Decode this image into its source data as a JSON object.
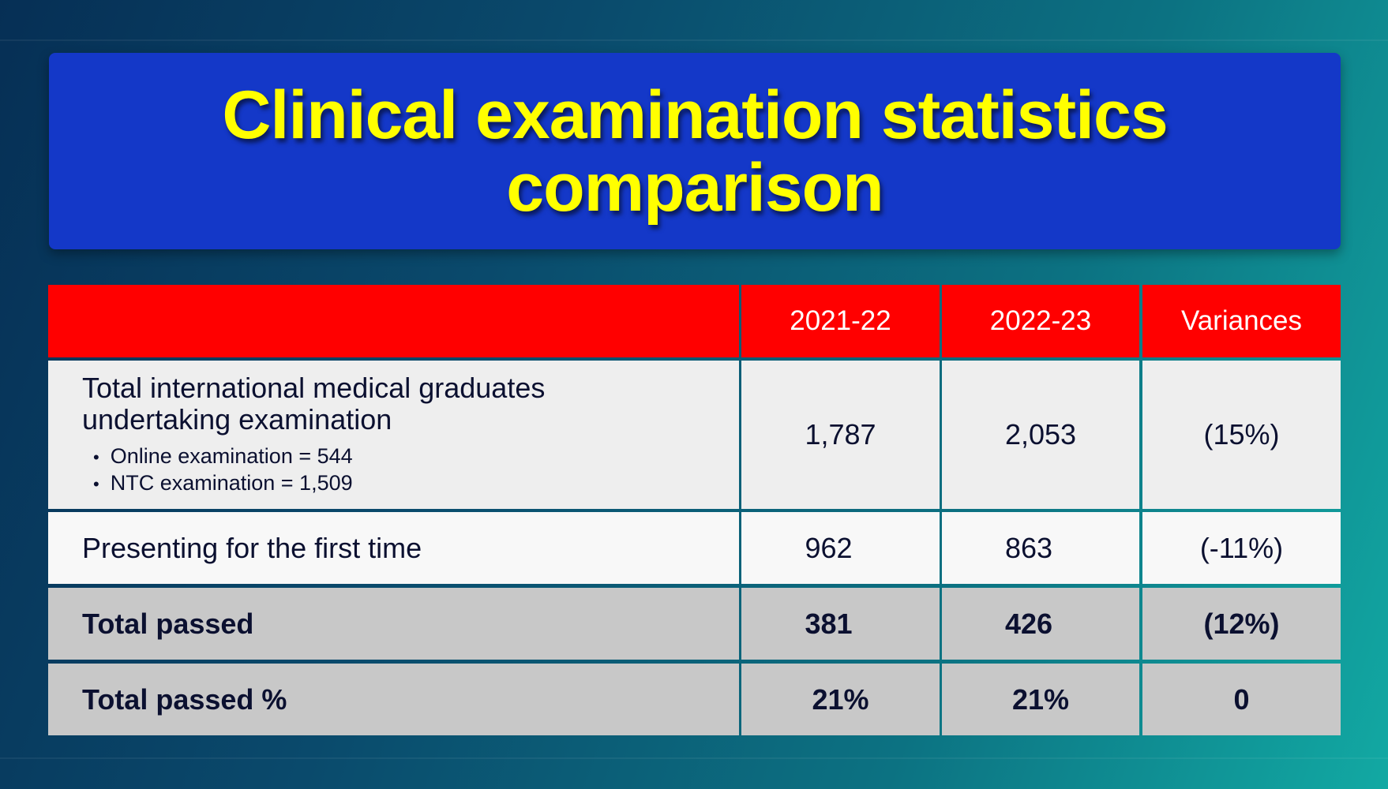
{
  "title": {
    "line1": "Clinical examination statistics",
    "line2": "comparison"
  },
  "table": {
    "headers": [
      "",
      "2021-22",
      "2022-23",
      "Variances"
    ],
    "rows": [
      {
        "label": "Total international medical graduates undertaking examination",
        "bullets": [
          "Online examination = 544",
          "NTC examination = 1,509"
        ],
        "values": [
          "1,787",
          "2,053",
          "(15%)"
        ]
      },
      {
        "label": "Presenting for the first time",
        "values": [
          "962",
          "863",
          "(-11%)"
        ]
      },
      {
        "label": "Total passed",
        "values": [
          "381",
          "426",
          "(12%)"
        ]
      },
      {
        "label": "Total passed %",
        "values": [
          "21%",
          "21%",
          "0"
        ]
      }
    ]
  },
  "colors": {
    "title_bg": "#1438c8",
    "title_text": "#ffff00",
    "header_bg": "#ff0000"
  }
}
